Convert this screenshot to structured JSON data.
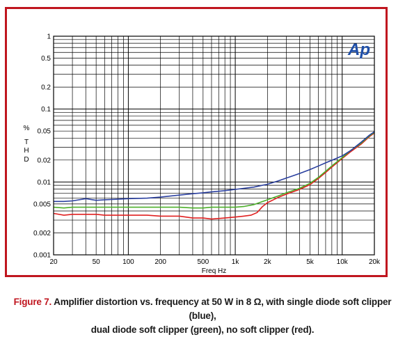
{
  "figure": {
    "caption_lead": "Figure 7.",
    "caption_line1": "Amplifier distortion vs. frequency at 50 W in 8 Ω, with single diode soft clipper (blue),",
    "caption_line2": "dual diode soft clipper (green), no soft clipper (red).",
    "frame_color": "#c0161f",
    "logo_text": "Ap",
    "logo_color": "#1f4fa8"
  },
  "chart_data": {
    "type": "line",
    "xlabel": "Freq Hz",
    "ylabel": "% THD",
    "ylabel_chars": [
      "%",
      "T",
      "H",
      "D"
    ],
    "x_scale": "log",
    "y_scale": "log",
    "xlim": [
      20,
      20000
    ],
    "ylim": [
      0.001,
      1
    ],
    "x_ticks": [
      {
        "value": 20,
        "label": "20"
      },
      {
        "value": 50,
        "label": "50"
      },
      {
        "value": 100,
        "label": "100"
      },
      {
        "value": 200,
        "label": "200"
      },
      {
        "value": 500,
        "label": "500"
      },
      {
        "value": 1000,
        "label": "1k"
      },
      {
        "value": 2000,
        "label": "2k"
      },
      {
        "value": 5000,
        "label": "5k"
      },
      {
        "value": 10000,
        "label": "10k"
      },
      {
        "value": 20000,
        "label": "20k"
      }
    ],
    "y_ticks": [
      {
        "value": 1,
        "label": "1"
      },
      {
        "value": 0.5,
        "label": "0.5"
      },
      {
        "value": 0.2,
        "label": "0.2"
      },
      {
        "value": 0.1,
        "label": "0.1"
      },
      {
        "value": 0.05,
        "label": "0.05"
      },
      {
        "value": 0.02,
        "label": "0.02"
      },
      {
        "value": 0.01,
        "label": "0.01"
      },
      {
        "value": 0.005,
        "label": "0.005"
      },
      {
        "value": 0.002,
        "label": "0.002"
      },
      {
        "value": 0.001,
        "label": "0.001"
      }
    ],
    "grid": true,
    "series": [
      {
        "color": "#e02020",
        "x": [
          20,
          25,
          30,
          40,
          50,
          60,
          80,
          100,
          150,
          200,
          300,
          400,
          500,
          600,
          800,
          1000,
          1200,
          1400,
          1600,
          1800,
          2000,
          2500,
          3000,
          4000,
          5000,
          6000,
          7000,
          8000,
          10000,
          12000,
          15000,
          18000,
          20000
        ],
        "y": [
          0.0037,
          0.0035,
          0.0036,
          0.0036,
          0.0036,
          0.0035,
          0.0035,
          0.0035,
          0.0035,
          0.0034,
          0.0034,
          0.0032,
          0.0032,
          0.0031,
          0.0032,
          0.0033,
          0.0034,
          0.0035,
          0.0038,
          0.0046,
          0.0052,
          0.0061,
          0.0068,
          0.0079,
          0.0092,
          0.0112,
          0.0135,
          0.016,
          0.021,
          0.026,
          0.033,
          0.042,
          0.047
        ]
      },
      {
        "color": "#4caf2a",
        "x": [
          20,
          25,
          30,
          40,
          50,
          60,
          80,
          100,
          150,
          200,
          300,
          400,
          500,
          600,
          800,
          1000,
          1200,
          1500,
          2000,
          2500,
          3000,
          4000,
          5000,
          6000,
          7000,
          8000,
          10000,
          12000,
          15000,
          18000,
          20000
        ],
        "y": [
          0.0045,
          0.0044,
          0.0045,
          0.0045,
          0.0045,
          0.0045,
          0.0045,
          0.0045,
          0.0045,
          0.0045,
          0.0045,
          0.0044,
          0.0044,
          0.0045,
          0.0045,
          0.0045,
          0.0046,
          0.0049,
          0.0057,
          0.0064,
          0.0071,
          0.0082,
          0.0096,
          0.0116,
          0.014,
          0.0166,
          0.0215,
          0.027,
          0.034,
          0.043,
          0.048
        ]
      },
      {
        "color": "#2a3f9f",
        "x": [
          20,
          25,
          30,
          40,
          50,
          60,
          80,
          100,
          150,
          200,
          300,
          400,
          500,
          600,
          800,
          1000,
          1500,
          2000,
          2500,
          3000,
          4000,
          5000,
          6000,
          7000,
          8000,
          10000,
          12000,
          15000,
          18000,
          20000
        ],
        "y": [
          0.0054,
          0.0054,
          0.0055,
          0.0059,
          0.0056,
          0.0057,
          0.0058,
          0.0059,
          0.006,
          0.0062,
          0.0066,
          0.0069,
          0.0071,
          0.0073,
          0.0076,
          0.0079,
          0.0085,
          0.0093,
          0.0103,
          0.0113,
          0.0131,
          0.0148,
          0.0166,
          0.0183,
          0.0198,
          0.0228,
          0.027,
          0.035,
          0.044,
          0.049
        ]
      }
    ]
  }
}
